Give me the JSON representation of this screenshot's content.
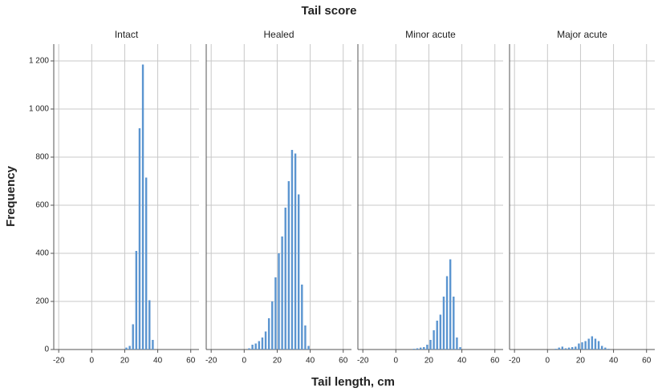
{
  "chart_data": {
    "type": "bar",
    "title": "Tail score",
    "x_label": "Tail length, cm",
    "y_label": "Frequency",
    "color": "#5b95d0",
    "grid": true,
    "xlim": [
      -23,
      65
    ],
    "xticks": [
      -20,
      0,
      20,
      40,
      60
    ],
    "ylim": [
      0,
      1270
    ],
    "yticks": [
      0,
      200,
      400,
      600,
      800,
      {
        "value": 1000,
        "label": "1 000"
      },
      {
        "value": 1200,
        "label": "1 200"
      }
    ],
    "panels": [
      {
        "title": "Intact",
        "x": [
          21,
          23,
          25,
          27,
          29,
          31,
          33,
          35,
          37
        ],
        "values": [
          8,
          15,
          105,
          410,
          920,
          1185,
          715,
          205,
          40
        ]
      },
      {
        "title": "Healed",
        "x": [
          3,
          5,
          7,
          9,
          11,
          13,
          15,
          17,
          19,
          21,
          23,
          25,
          27,
          29,
          31,
          33,
          35,
          37,
          39
        ],
        "values": [
          5,
          20,
          25,
          35,
          50,
          75,
          130,
          200,
          300,
          400,
          470,
          590,
          700,
          830,
          815,
          645,
          270,
          100,
          15
        ]
      },
      {
        "title": "Minor acute",
        "x": [
          11,
          13,
          15,
          17,
          19,
          21,
          23,
          25,
          27,
          29,
          31,
          33,
          35,
          37,
          39
        ],
        "values": [
          3,
          5,
          8,
          10,
          20,
          40,
          80,
          120,
          145,
          220,
          305,
          375,
          220,
          50,
          10
        ]
      },
      {
        "title": "Major acute",
        "x": [
          5,
          7,
          9,
          11,
          13,
          15,
          17,
          19,
          21,
          23,
          25,
          27,
          29,
          31,
          33,
          35,
          37
        ],
        "values": [
          3,
          8,
          12,
          5,
          8,
          10,
          12,
          25,
          30,
          35,
          45,
          55,
          45,
          35,
          15,
          8,
          3
        ]
      }
    ]
  }
}
